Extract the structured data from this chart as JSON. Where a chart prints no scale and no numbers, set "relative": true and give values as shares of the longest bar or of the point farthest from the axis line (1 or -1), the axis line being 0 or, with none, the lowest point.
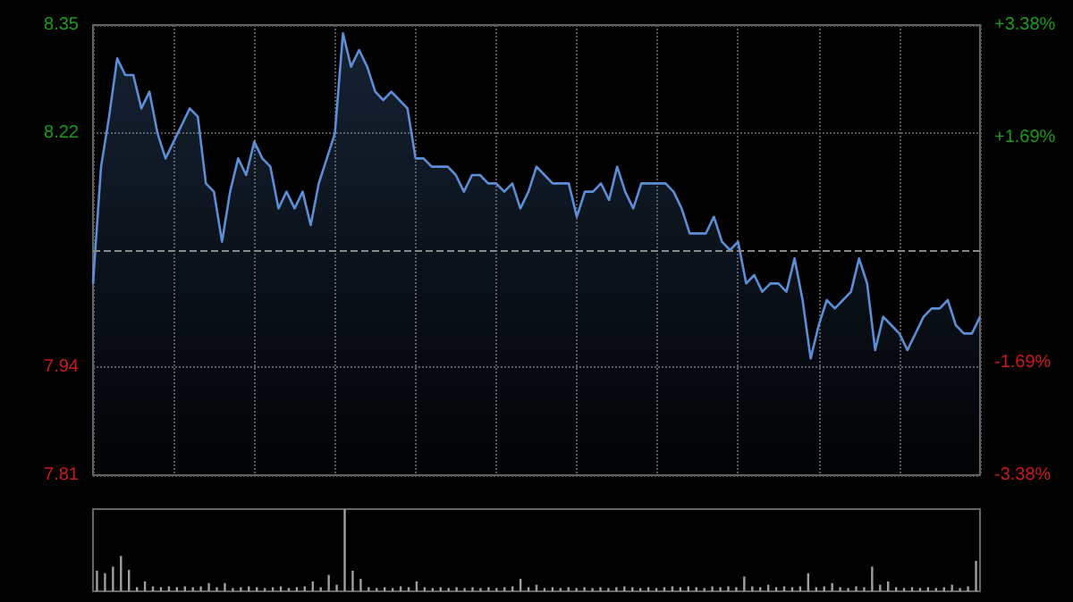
{
  "chart_data": [
    {
      "type": "area",
      "categories": [
        null,
        null,
        null,
        null,
        null,
        null,
        null,
        null,
        null,
        null,
        null,
        null,
        null,
        null,
        null,
        null,
        null,
        null,
        null,
        null,
        null,
        null,
        null,
        null,
        null,
        null,
        null,
        null,
        null,
        null,
        null,
        null,
        null,
        null,
        null,
        null,
        null,
        null,
        null,
        null,
        null,
        null,
        null,
        null,
        null,
        null,
        null,
        null,
        null,
        null,
        null,
        null,
        null,
        null,
        null,
        null,
        null,
        null,
        null,
        null,
        null,
        null,
        null,
        null,
        null,
        null,
        null,
        null,
        null,
        null,
        null,
        null,
        null,
        null,
        null,
        null,
        null,
        null,
        null,
        null,
        null,
        null,
        null,
        null,
        null,
        null,
        null,
        null,
        null,
        null,
        null,
        null,
        null,
        null,
        null,
        null,
        null,
        null,
        null,
        null,
        null,
        null,
        null,
        null,
        null,
        null,
        null,
        null,
        null,
        null,
        null
      ],
      "series": [
        {
          "color": "#5b8ed6",
          "values": [
            8.04,
            8.18,
            8.24,
            8.31,
            8.29,
            8.29,
            8.25,
            8.27,
            8.22,
            8.19,
            8.21,
            8.23,
            8.25,
            8.24,
            8.16,
            8.15,
            8.09,
            8.15,
            8.19,
            8.17,
            8.21,
            8.19,
            8.18,
            8.13,
            8.15,
            8.13,
            8.15,
            8.11,
            8.16,
            8.19,
            8.22,
            8.34,
            8.3,
            8.32,
            8.3,
            8.27,
            8.26,
            8.27,
            8.26,
            8.25,
            8.19,
            8.19,
            8.18,
            8.18,
            8.18,
            8.17,
            8.15,
            8.17,
            8.17,
            8.16,
            8.16,
            8.15,
            8.16,
            8.13,
            8.15,
            8.18,
            8.17,
            8.16,
            8.16,
            8.16,
            8.12,
            8.15,
            8.15,
            8.16,
            8.14,
            8.18,
            8.15,
            8.13,
            8.16,
            8.16,
            8.16,
            8.16,
            8.15,
            8.13,
            8.1,
            8.1,
            8.1,
            8.12,
            8.09,
            8.08,
            8.09,
            8.04,
            8.05,
            8.03,
            8.04,
            8.04,
            8.03,
            8.07,
            8.02,
            7.95,
            7.99,
            8.02,
            8.01,
            8.02,
            8.03,
            8.07,
            8.04,
            7.96,
            8.0,
            7.99,
            7.98,
            7.96,
            7.98,
            8.0,
            8.01,
            8.01,
            8.02,
            7.99,
            7.98,
            7.98,
            8.0
          ]
        }
      ],
      "ylim": [
        7.81,
        8.35
      ],
      "yticks": [
        7.81,
        7.94,
        8.22,
        8.35
      ],
      "y2lim": [
        -3.38,
        3.38
      ],
      "y2ticks": [
        {
          "value": -3.38,
          "label": "-3.38%"
        },
        {
          "value": -1.69,
          "label": "-1.69%"
        },
        {
          "value": 1.69,
          "label": "+1.69%"
        },
        {
          "value": 3.38,
          "label": "+3.38%"
        }
      ],
      "ref_lines": [
        {
          "axis": "y",
          "value": 8.08,
          "line_style": "dashed"
        }
      ],
      "grid": true,
      "tick_labels": "y",
      "line_style": "solid"
    },
    {
      "type": "bar",
      "relative": true,
      "tick_labels": false,
      "categories": [
        null,
        null,
        null,
        null,
        null,
        null,
        null,
        null,
        null,
        null,
        null,
        null,
        null,
        null,
        null,
        null,
        null,
        null,
        null,
        null,
        null,
        null,
        null,
        null,
        null,
        null,
        null,
        null,
        null,
        null,
        null,
        null,
        null,
        null,
        null,
        null,
        null,
        null,
        null,
        null,
        null,
        null,
        null,
        null,
        null,
        null,
        null,
        null,
        null,
        null,
        null,
        null,
        null,
        null,
        null,
        null,
        null,
        null,
        null,
        null,
        null,
        null,
        null,
        null,
        null,
        null,
        null,
        null,
        null,
        null,
        null,
        null,
        null,
        null,
        null,
        null,
        null,
        null,
        null,
        null,
        null,
        null,
        null,
        null,
        null,
        null,
        null,
        null,
        null,
        null,
        null,
        null,
        null,
        null,
        null,
        null,
        null,
        null,
        null,
        null,
        null,
        null,
        null,
        null,
        null,
        null,
        null,
        null,
        null,
        null,
        null
      ],
      "series": [
        {
          "color": "#a0a0a0",
          "values": [
            0.25,
            0.22,
            0.3,
            0.43,
            0.26,
            0.05,
            0.12,
            0.06,
            0.05,
            0.06,
            0.05,
            0.06,
            0.05,
            0.06,
            0.1,
            0.05,
            0.1,
            0.04,
            0.05,
            0.06,
            0.05,
            0.04,
            0.05,
            0.06,
            0.04,
            0.05,
            0.06,
            0.12,
            0.05,
            0.2,
            0.08,
            1,
            0.25,
            0.15,
            0.05,
            0.04,
            0.05,
            0.04,
            0.06,
            0.05,
            0.12,
            0.05,
            0.04,
            0.05,
            0.04,
            0.05,
            0.04,
            0.05,
            0.04,
            0.05,
            0.04,
            0.05,
            0.06,
            0.15,
            0.05,
            0.08,
            0.04,
            0.05,
            0.04,
            0.05,
            0.04,
            0.05,
            0.04,
            0.05,
            0.04,
            0.05,
            0.06,
            0.05,
            0.04,
            0.05,
            0.04,
            0.05,
            0.06,
            0.05,
            0.06,
            0.05,
            0.04,
            0.06,
            0.05,
            0.06,
            0.05,
            0.18,
            0.06,
            0.05,
            0.08,
            0.05,
            0.06,
            0.05,
            0.06,
            0.22,
            0.05,
            0.06,
            0.1,
            0.05,
            0.04,
            0.06,
            0.05,
            0.3,
            0.08,
            0.12,
            0.05,
            0.04,
            0.05,
            0.04,
            0.05,
            0.04,
            0.05,
            0.08,
            0.04,
            0.06,
            0.37
          ]
        }
      ]
    }
  ]
}
